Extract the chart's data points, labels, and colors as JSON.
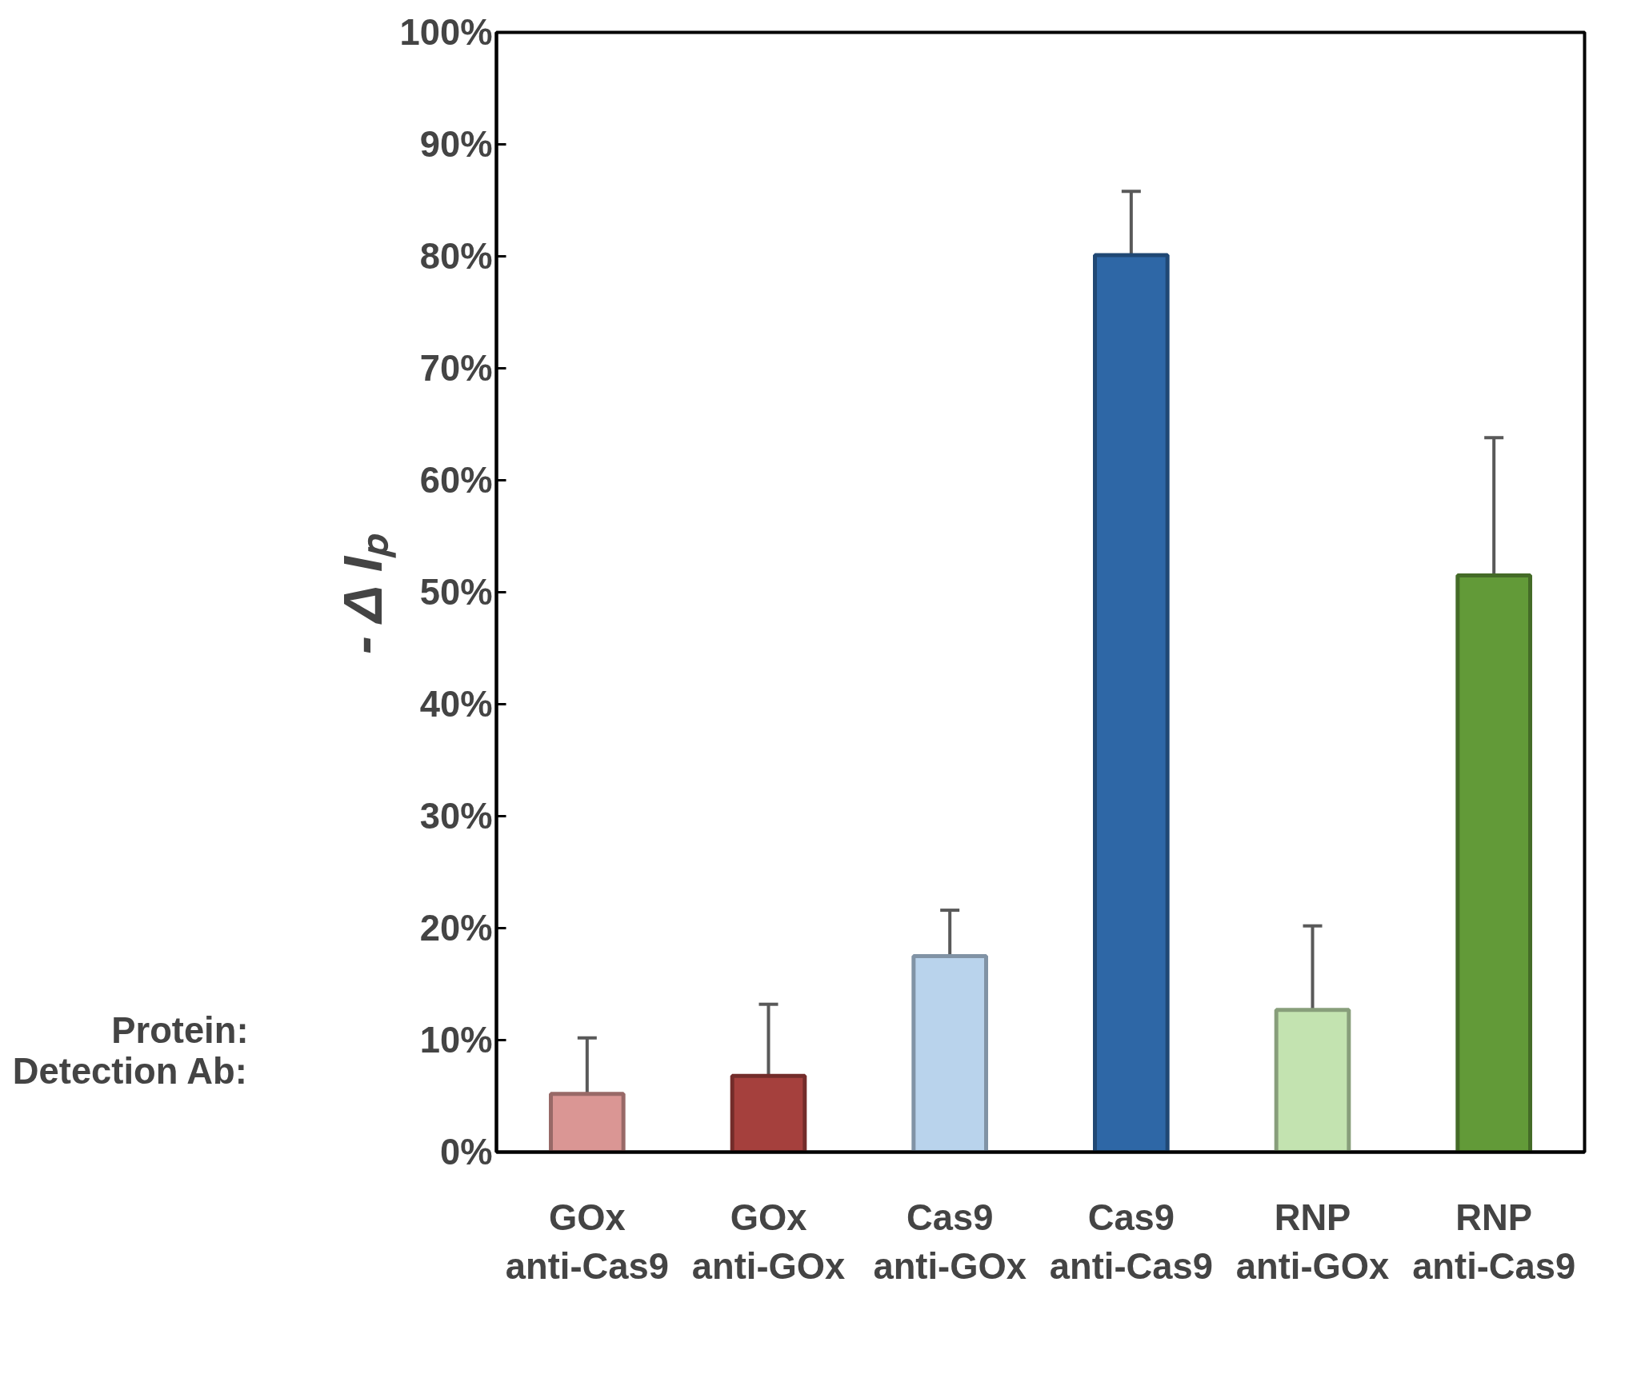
{
  "chart_data": {
    "type": "bar",
    "ylabel": "- Δ Iₚ",
    "categories": [
      "GOx\nanti-Cas9",
      "GOx\nanti-GOx",
      "Cas9\nanti-GOx",
      "Cas9\nanti-Cas9",
      "RNP\nanti-GOx",
      "RNP\nanti-Cas9"
    ],
    "values": [
      5.2,
      6.8,
      17.5,
      80.1,
      12.7,
      51.5
    ],
    "errors": [
      5.0,
      6.4,
      4.1,
      5.7,
      7.5,
      12.3
    ],
    "colors": [
      "#da9694",
      "#a5403d",
      "#b9d3ec",
      "#2e67a6",
      "#c3e3b0",
      "#629a38"
    ],
    "ylim": [
      0,
      100
    ],
    "yticks": [
      {
        "value": 0,
        "label": "0%"
      },
      {
        "value": 10,
        "label": "10%"
      },
      {
        "value": 20,
        "label": "20%"
      },
      {
        "value": 30,
        "label": "30%"
      },
      {
        "value": 40,
        "label": "40%"
      },
      {
        "value": 50,
        "label": "50%"
      },
      {
        "value": 60,
        "label": "60%"
      },
      {
        "value": 70,
        "label": "70%"
      },
      {
        "value": 80,
        "label": "80%"
      },
      {
        "value": 90,
        "label": "90%"
      },
      {
        "value": 100,
        "label": "100%"
      }
    ],
    "annotations": [
      "Protein:",
      "Detection Ab:"
    ],
    "grid": false
  }
}
